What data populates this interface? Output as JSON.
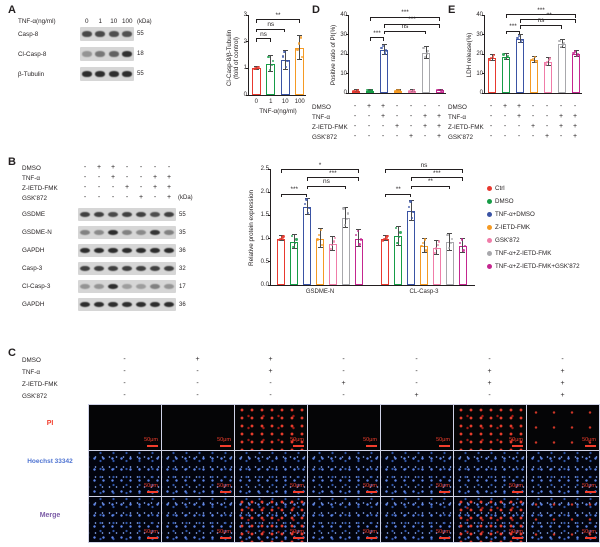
{
  "figure": {
    "panel_labels": {
      "A": "A",
      "B": "B",
      "C": "C",
      "D": "D",
      "E": "E"
    }
  },
  "legend": {
    "items": [
      {
        "label": "Ctrl",
        "color": "#e8392f"
      },
      {
        "label": "DMSO",
        "color": "#169c46"
      },
      {
        "label": "TNF-α+DMSO",
        "color": "#3a53a4"
      },
      {
        "label": "Z-IETD-FMK",
        "color": "#f59a23"
      },
      {
        "label": "GSK'872",
        "color": "#f07ca8"
      },
      {
        "label": "TNF-α+Z-IETD-FMK",
        "color": "#a8a8ac"
      },
      {
        "label": "TNF-α+Z-IETD-FMK+GSK'872",
        "color": "#c4268f"
      }
    ]
  },
  "panelA": {
    "blot": {
      "header_label": "TNF-α(ng/ml)",
      "doses": [
        "0",
        "1",
        "10",
        "100"
      ],
      "kda_unit": "(kDa)",
      "rows": [
        {
          "name": "Casp-8",
          "kda": "55",
          "bands": [
            0.75,
            0.75,
            0.72,
            0.7
          ]
        },
        {
          "name": "Cl-Casp-8",
          "kda": "18",
          "bands": [
            0.35,
            0.5,
            0.62,
            0.88
          ]
        },
        {
          "name": "β-Tubulin",
          "kda": "55",
          "bands": [
            0.9,
            0.9,
            0.9,
            0.9
          ]
        }
      ]
    }
  },
  "panelB": {
    "kda_unit": "(kDa)",
    "treatments": [
      {
        "label": "DMSO",
        "signs": [
          "-",
          "+",
          "+",
          "-",
          "-",
          "-",
          "-"
        ]
      },
      {
        "label": "TNF-α",
        "signs": [
          "-",
          "-",
          "+",
          "-",
          "-",
          "+",
          "+"
        ]
      },
      {
        "label": "Z-IETD-FMK",
        "signs": [
          "-",
          "-",
          "-",
          "+",
          "-",
          "+",
          "+"
        ]
      },
      {
        "label": "GSK'872",
        "signs": [
          "-",
          "-",
          "-",
          "-",
          "+",
          "-",
          "+"
        ]
      }
    ],
    "blot_rows": [
      {
        "name": "GSDME",
        "kda": "55",
        "bands": [
          0.8,
          0.8,
          0.75,
          0.8,
          0.8,
          0.72,
          0.8
        ]
      },
      {
        "name": "GSDME-N",
        "kda": "35",
        "bands": [
          0.45,
          0.4,
          0.9,
          0.45,
          0.4,
          0.85,
          0.45
        ]
      },
      {
        "name": "GAPDH",
        "kda": "36",
        "bands": [
          0.9,
          0.9,
          0.9,
          0.9,
          0.9,
          0.9,
          0.9
        ]
      },
      {
        "name": "Casp-3",
        "kda": "32",
        "bands": [
          0.8,
          0.8,
          0.8,
          0.8,
          0.8,
          0.8,
          0.8
        ]
      },
      {
        "name": "Cl-Casp-3",
        "kda": "17",
        "bands": [
          0.35,
          0.35,
          0.9,
          0.3,
          0.3,
          0.45,
          0.35
        ]
      },
      {
        "name": "GAPDH",
        "kda": "36",
        "bands": [
          0.9,
          0.9,
          0.9,
          0.9,
          0.9,
          0.9,
          0.9
        ]
      }
    ]
  },
  "panelC": {
    "columns": 7,
    "treatments": [
      {
        "label": "DMSO",
        "signs": [
          "-",
          "+",
          "+",
          "-",
          "-",
          "-",
          "-"
        ]
      },
      {
        "label": "TNF-α",
        "signs": [
          "-",
          "-",
          "+",
          "-",
          "-",
          "+",
          "+"
        ]
      },
      {
        "label": "Z-IETD-FMK",
        "signs": [
          "-",
          "-",
          "-",
          "+",
          "-",
          "+",
          "+"
        ]
      },
      {
        "label": "GSK'872",
        "signs": [
          "-",
          "-",
          "-",
          "-",
          "+",
          "-",
          "+"
        ]
      }
    ],
    "row_labels": [
      {
        "label": "PI",
        "color": "#f23e2d"
      },
      {
        "label": "Hoechst 33342",
        "color": "#4f74d2"
      },
      {
        "label": "Merge",
        "color": "#7b5ba6"
      }
    ],
    "pi_signal": [
      0,
      0,
      2,
      0,
      0,
      2,
      1
    ],
    "scale_label": "50μm"
  },
  "chart_data": [
    {
      "id": "A",
      "type": "bar",
      "categories": [
        "0",
        "1",
        "10",
        "100"
      ],
      "values": [
        1.0,
        1.15,
        1.3,
        1.75
      ],
      "errors": [
        0.05,
        0.3,
        0.35,
        0.45
      ],
      "colors": [
        "#e8392f",
        "#169c46",
        "#3a53a4",
        "#f59a23"
      ],
      "title": "",
      "ylabel": "Cl-Casp-8/β-Tubulin",
      "ylabel2": "(fold of control)",
      "xlabel": "TNF-α(ng/ml)",
      "ylim": [
        0,
        3
      ],
      "yticks": [
        "0",
        "1",
        "2",
        "3"
      ],
      "significance": [
        {
          "from": 0,
          "to": 1,
          "label": "ns",
          "y": 2.1
        },
        {
          "from": 0,
          "to": 2,
          "label": "ns",
          "y": 2.45
        },
        {
          "from": 0,
          "to": 3,
          "label": "**",
          "y": 2.8
        }
      ]
    },
    {
      "id": "B",
      "type": "grouped-bar",
      "categories": [
        "GSDME-N",
        "CL-Casp-3"
      ],
      "series_labels": [
        "Ctrl",
        "DMSO",
        "TNF-α+DMSO",
        "Z-IETD-FMK",
        "GSK'872",
        "TNF-α+Z-IETD-FMK",
        "TNF-α+Z-IETD-FMK+GSK'872"
      ],
      "series_values": [
        [
          1.0,
          0.92,
          1.68,
          1.0,
          0.88,
          1.45,
          1.0
        ],
        [
          1.0,
          1.05,
          1.6,
          0.85,
          0.8,
          0.92,
          0.85
        ]
      ],
      "series_errors": [
        [
          0.05,
          0.15,
          0.18,
          0.2,
          0.15,
          0.22,
          0.18
        ],
        [
          0.06,
          0.2,
          0.22,
          0.15,
          0.15,
          0.18,
          0.15
        ]
      ],
      "colors": [
        "#e8392f",
        "#169c46",
        "#3a53a4",
        "#f59a23",
        "#f07ca8",
        "#a8a8ac",
        "#c4268f"
      ],
      "ylabel": "Relative protein expression",
      "ylim": [
        0,
        2.5
      ],
      "yticks": [
        "0.0",
        "0.5",
        "1.0",
        "1.5",
        "2.0",
        "2.5"
      ],
      "significance": [
        {
          "group": 0,
          "from": 0,
          "to": 2,
          "label": "***",
          "y": 1.95
        },
        {
          "group": 0,
          "from": 2,
          "to": 5,
          "label": "ns",
          "y": 2.12
        },
        {
          "group": 0,
          "from": 2,
          "to": 6,
          "label": "***",
          "y": 2.3
        },
        {
          "group": 0,
          "from": 0,
          "to": 6,
          "label": "*",
          "y": 2.47
        },
        {
          "group": 1,
          "from": 0,
          "to": 2,
          "label": "**",
          "y": 1.95
        },
        {
          "group": 1,
          "from": 2,
          "to": 5,
          "label": "**",
          "y": 2.12
        },
        {
          "group": 1,
          "from": 2,
          "to": 6,
          "label": "***",
          "y": 2.3
        },
        {
          "group": 1,
          "from": 0,
          "to": 6,
          "label": "ns",
          "y": 2.47
        }
      ]
    },
    {
      "id": "D",
      "type": "bar",
      "values": [
        1.0,
        1.2,
        22,
        1.1,
        1.0,
        20.5,
        1.3
      ],
      "errors": [
        0.3,
        0.4,
        2.5,
        0.3,
        0.3,
        3.0,
        0.4
      ],
      "colors": [
        "#e8392f",
        "#169c46",
        "#3a53a4",
        "#f59a23",
        "#f07ca8",
        "#a8a8ac",
        "#c4268f"
      ],
      "ylabel": "Positive ratio of PI(%)",
      "ylim": [
        0,
        40
      ],
      "yticks": [
        "0",
        "10",
        "20",
        "30",
        "40"
      ],
      "significance": [
        {
          "from": 1,
          "to": 2,
          "label": "***",
          "y": 28
        },
        {
          "from": 2,
          "to": 5,
          "label": "ns",
          "y": 31.5
        },
        {
          "from": 2,
          "to": 6,
          "label": "***",
          "y": 35
        },
        {
          "from": 1,
          "to": 6,
          "label": "***",
          "y": 38.5
        }
      ],
      "treatments": [
        {
          "label": "DMSO",
          "signs": [
            "-",
            "+",
            "+",
            "-",
            "-",
            "-",
            "-"
          ]
        },
        {
          "label": "TNF-α",
          "signs": [
            "-",
            "-",
            "+",
            "-",
            "-",
            "+",
            "+"
          ]
        },
        {
          "label": "Z-IETD-FMK",
          "signs": [
            "-",
            "-",
            "-",
            "+",
            "-",
            "+",
            "+"
          ]
        },
        {
          "label": "GSK'872",
          "signs": [
            "-",
            "-",
            "-",
            "-",
            "+",
            "-",
            "+"
          ]
        }
      ]
    },
    {
      "id": "E",
      "type": "bar",
      "values": [
        18,
        18.5,
        27.5,
        17,
        16,
        25,
        20
      ],
      "errors": [
        1.5,
        1.5,
        2.0,
        1.5,
        2.0,
        2.0,
        1.5
      ],
      "colors": [
        "#e8392f",
        "#169c46",
        "#3a53a4",
        "#f59a23",
        "#f07ca8",
        "#a8a8ac",
        "#c4268f"
      ],
      "ylabel": "LDH release(%)",
      "ylim": [
        0,
        40
      ],
      "yticks": [
        "0",
        "10",
        "20",
        "30",
        "40"
      ],
      "significance": [
        {
          "from": 1,
          "to": 2,
          "label": "***",
          "y": 31.5
        },
        {
          "from": 2,
          "to": 5,
          "label": "ns",
          "y": 34.5
        },
        {
          "from": 2,
          "to": 6,
          "label": "***",
          "y": 37.2
        },
        {
          "from": 1,
          "to": 6,
          "label": "***",
          "y": 39.8
        }
      ],
      "treatments": [
        {
          "label": "DMSO",
          "signs": [
            "-",
            "+",
            "+",
            "-",
            "-",
            "-",
            "-"
          ]
        },
        {
          "label": "TNF-α",
          "signs": [
            "-",
            "-",
            "+",
            "-",
            "-",
            "+",
            "+"
          ]
        },
        {
          "label": "Z-IETD-FMK",
          "signs": [
            "-",
            "-",
            "-",
            "+",
            "-",
            "+",
            "+"
          ]
        },
        {
          "label": "GSK'872",
          "signs": [
            "-",
            "-",
            "-",
            "-",
            "+",
            "-",
            "+"
          ]
        }
      ]
    }
  ]
}
